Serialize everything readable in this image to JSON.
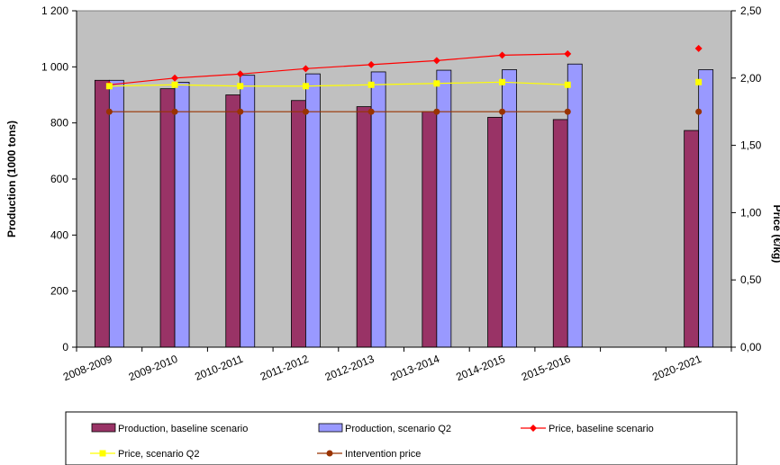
{
  "chart_data": {
    "type": "bar",
    "categories": [
      "2008-2009",
      "2009-2010",
      "2010-2011",
      "2011-2012",
      "2012-2013",
      "2013-2014",
      "2014-2015",
      "2015-2016",
      "",
      "2020-2021"
    ],
    "ylabel": "Production (1000 tons)",
    "y2label": "Price (€/kg)",
    "ylim": [
      0,
      1200
    ],
    "y2lim": [
      0,
      2.5
    ],
    "yticks": [
      "0",
      "200",
      "400",
      "600",
      "800",
      "1 000",
      "1 200"
    ],
    "y2ticks": [
      "0,00",
      "0,50",
      "1,00",
      "1,50",
      "2,00",
      "2,50"
    ],
    "grid": false,
    "legend_position": "bottom",
    "series": [
      {
        "name": "Production, baseline scenario",
        "kind": "bar",
        "axis": "left",
        "color": "#993366",
        "values": [
          952,
          922,
          900,
          880,
          858,
          840,
          820,
          812,
          null,
          773
        ]
      },
      {
        "name": "Production, scenario Q2",
        "kind": "bar",
        "axis": "left",
        "color": "#9999ff",
        "values": [
          952,
          945,
          970,
          975,
          982,
          988,
          990,
          1010,
          null,
          990
        ]
      },
      {
        "name": "Price, baseline scenario",
        "kind": "line",
        "axis": "right",
        "color": "#ff0000",
        "marker": "diamond",
        "values": [
          1.95,
          2.0,
          2.03,
          2.07,
          2.1,
          2.13,
          2.17,
          2.18,
          null,
          2.22
        ],
        "connect_last": false
      },
      {
        "name": "Price, scenario Q2",
        "kind": "line",
        "axis": "right",
        "color": "#ffff00",
        "marker": "square",
        "values": [
          1.94,
          1.95,
          1.94,
          1.94,
          1.95,
          1.96,
          1.97,
          1.95,
          null,
          1.97
        ],
        "connect_last": false
      },
      {
        "name": "Intervention price",
        "kind": "line",
        "axis": "right",
        "color": "#993300",
        "marker": "circle",
        "values": [
          1.75,
          1.75,
          1.75,
          1.75,
          1.75,
          1.75,
          1.75,
          1.75,
          null,
          1.75
        ],
        "connect_last": false
      }
    ],
    "colors": {
      "plot_bg": "#c0c0c0",
      "page_bg": "#ffffff",
      "border": "#000000"
    }
  }
}
